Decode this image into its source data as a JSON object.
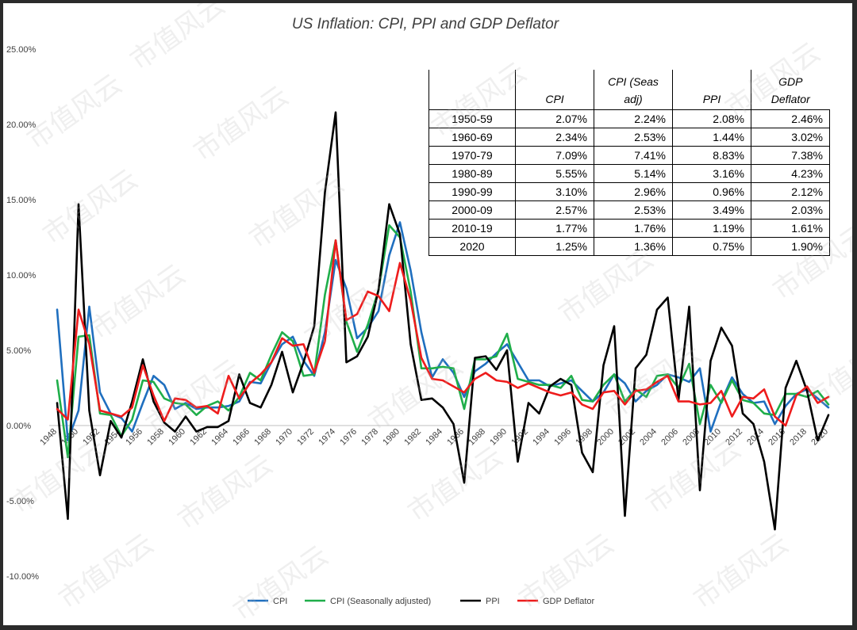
{
  "chart_data": {
    "type": "line",
    "title": "US Inflation: CPI, PPI and GDP Deflator",
    "xlabel": "",
    "ylabel": "",
    "xlim": [
      1948,
      2020
    ],
    "ylim": [
      -10,
      25
    ],
    "y_ticks": [
      "25.00%",
      "20.00%",
      "15.00%",
      "10.00%",
      "5.00%",
      "0.00%",
      "-5.00%",
      "-10.00%"
    ],
    "y_tick_values": [
      25,
      20,
      15,
      10,
      5,
      0,
      -5,
      -10
    ],
    "x_ticks": [
      "1948",
      "1950",
      "1952",
      "1954",
      "1956",
      "1958",
      "1960",
      "1962",
      "1964",
      "1966",
      "1968",
      "1970",
      "1972",
      "1974",
      "1976",
      "1978",
      "1980",
      "1982",
      "1984",
      "1986",
      "1988",
      "1990",
      "1992",
      "1994",
      "1996",
      "1998",
      "2000",
      "2002",
      "2004",
      "2006",
      "2008",
      "2010",
      "2012",
      "2014",
      "2016",
      "2018",
      "2020"
    ],
    "grid": false,
    "legend_position": "bottom",
    "x": [
      1948,
      1949,
      1950,
      1951,
      1952,
      1953,
      1954,
      1955,
      1956,
      1957,
      1958,
      1959,
      1960,
      1961,
      1962,
      1963,
      1964,
      1965,
      1966,
      1967,
      1968,
      1969,
      1970,
      1971,
      1972,
      1973,
      1974,
      1975,
      1976,
      1977,
      1978,
      1979,
      1980,
      1981,
      1982,
      1983,
      1984,
      1985,
      1986,
      1987,
      1988,
      1989,
      1990,
      1991,
      1992,
      1993,
      1994,
      1995,
      1996,
      1997,
      1998,
      1999,
      2000,
      2001,
      2002,
      2003,
      2004,
      2005,
      2006,
      2007,
      2008,
      2009,
      2010,
      2011,
      2012,
      2013,
      2014,
      2015,
      2016,
      2017,
      2018,
      2019,
      2020
    ],
    "series": [
      {
        "name": "CPI",
        "color": "#1f6fbf",
        "values": [
          7.7,
          -1.0,
          1.0,
          7.9,
          2.2,
          0.8,
          0.5,
          -0.4,
          1.5,
          3.3,
          2.7,
          1.1,
          1.5,
          1.1,
          1.2,
          1.2,
          1.3,
          1.6,
          2.9,
          2.8,
          4.2,
          5.4,
          5.9,
          4.3,
          3.3,
          6.2,
          11.0,
          9.1,
          5.8,
          6.5,
          7.6,
          11.3,
          13.5,
          10.3,
          6.2,
          3.2,
          4.4,
          3.5,
          1.9,
          3.6,
          4.1,
          4.8,
          5.4,
          4.2,
          3.0,
          3.0,
          2.6,
          2.8,
          3.0,
          2.3,
          1.6,
          2.2,
          3.4,
          2.8,
          1.6,
          2.3,
          2.7,
          3.4,
          3.2,
          2.9,
          3.8,
          -0.4,
          1.6,
          3.2,
          2.1,
          1.5,
          1.6,
          0.1,
          1.3,
          2.1,
          2.4,
          1.8,
          1.2
        ]
      },
      {
        "name": "CPI (Seasonally adjusted)",
        "color": "#1fae4a",
        "values": [
          3.0,
          -2.1,
          5.9,
          6.0,
          0.8,
          0.7,
          -0.7,
          0.4,
          3.0,
          2.9,
          1.8,
          1.5,
          1.4,
          0.7,
          1.3,
          1.6,
          1.0,
          1.9,
          3.5,
          3.0,
          4.7,
          6.2,
          5.6,
          3.3,
          3.4,
          8.7,
          12.3,
          6.9,
          4.9,
          6.7,
          9.0,
          13.3,
          12.5,
          8.9,
          3.8,
          3.8,
          3.9,
          3.8,
          1.1,
          4.4,
          4.4,
          4.6,
          6.1,
          3.1,
          2.9,
          2.7,
          2.7,
          2.5,
          3.3,
          1.7,
          1.6,
          2.7,
          3.4,
          1.6,
          2.4,
          1.9,
          3.3,
          3.4,
          2.5,
          4.1,
          0.1,
          2.7,
          1.5,
          3.0,
          1.7,
          1.5,
          0.8,
          0.7,
          2.1,
          2.1,
          1.9,
          2.3,
          1.4
        ]
      },
      {
        "name": "PPI",
        "color": "#000000",
        "values": [
          1.5,
          -6.2,
          14.7,
          1.0,
          -3.3,
          0.3,
          -0.8,
          1.6,
          4.4,
          1.6,
          0.2,
          -0.4,
          0.6,
          -0.4,
          -0.1,
          -0.1,
          0.3,
          3.4,
          1.5,
          1.2,
          2.7,
          4.9,
          2.2,
          4.2,
          6.6,
          15.5,
          20.8,
          4.2,
          4.6,
          5.9,
          9.0,
          14.7,
          12.7,
          5.4,
          1.7,
          1.8,
          1.2,
          0.1,
          -3.8,
          4.5,
          4.6,
          3.7,
          5.0,
          -2.4,
          1.5,
          0.8,
          2.6,
          3.1,
          2.7,
          -1.8,
          -3.1,
          4.0,
          6.6,
          -6.0,
          3.8,
          4.7,
          7.7,
          8.5,
          1.7,
          7.9,
          -4.3,
          4.3,
          6.5,
          5.3,
          0.8,
          0.1,
          -2.4,
          -6.9,
          2.5,
          4.3,
          2.3,
          -1.0,
          0.7
        ]
      },
      {
        "name": "GDP Deflator",
        "color": "#ee1c1c",
        "values": [
          1.1,
          0.4,
          7.7,
          5.4,
          1.0,
          0.8,
          0.6,
          1.2,
          4.0,
          2.0,
          0.3,
          1.8,
          1.7,
          1.2,
          1.3,
          0.8,
          3.3,
          1.8,
          2.8,
          3.4,
          4.2,
          5.8,
          5.3,
          5.4,
          3.5,
          5.6,
          12.3,
          7.0,
          7.4,
          8.9,
          8.6,
          7.6,
          10.8,
          8.3,
          4.5,
          3.1,
          3.0,
          2.6,
          2.2,
          3.1,
          3.5,
          3.0,
          2.9,
          2.5,
          2.8,
          2.5,
          2.2,
          2.0,
          2.2,
          1.4,
          1.1,
          2.2,
          2.3,
          1.4,
          2.3,
          2.4,
          2.9,
          3.3,
          1.6,
          1.6,
          1.4,
          1.5,
          2.3,
          0.6,
          1.9,
          1.8,
          2.4,
          0.6,
          0.0,
          2.0,
          2.6,
          1.5,
          1.9
        ]
      }
    ]
  },
  "table": {
    "headers": [
      {
        "line1": "",
        "line2": ""
      },
      {
        "line1": "",
        "line2": "CPI"
      },
      {
        "line1": "CPI (Seas",
        "line2": "adj)"
      },
      {
        "line1": "",
        "line2": "PPI"
      },
      {
        "line1": "GDP",
        "line2": "Deflator"
      }
    ],
    "rows": [
      [
        "1950-59",
        "2.07%",
        "2.24%",
        "2.08%",
        "2.46%"
      ],
      [
        "1960-69",
        "2.34%",
        "2.53%",
        "1.44%",
        "3.02%"
      ],
      [
        "1970-79",
        "7.09%",
        "7.41%",
        "8.83%",
        "7.38%"
      ],
      [
        "1980-89",
        "5.55%",
        "5.14%",
        "3.16%",
        "4.23%"
      ],
      [
        "1990-99",
        "3.10%",
        "2.96%",
        "0.96%",
        "2.12%"
      ],
      [
        "2000-09",
        "2.57%",
        "2.53%",
        "3.49%",
        "2.03%"
      ],
      [
        "2010-19",
        "1.77%",
        "1.76%",
        "1.19%",
        "1.61%"
      ],
      [
        "2020",
        "1.25%",
        "1.36%",
        "0.75%",
        "1.90%"
      ]
    ]
  },
  "watermark": "市值风云"
}
